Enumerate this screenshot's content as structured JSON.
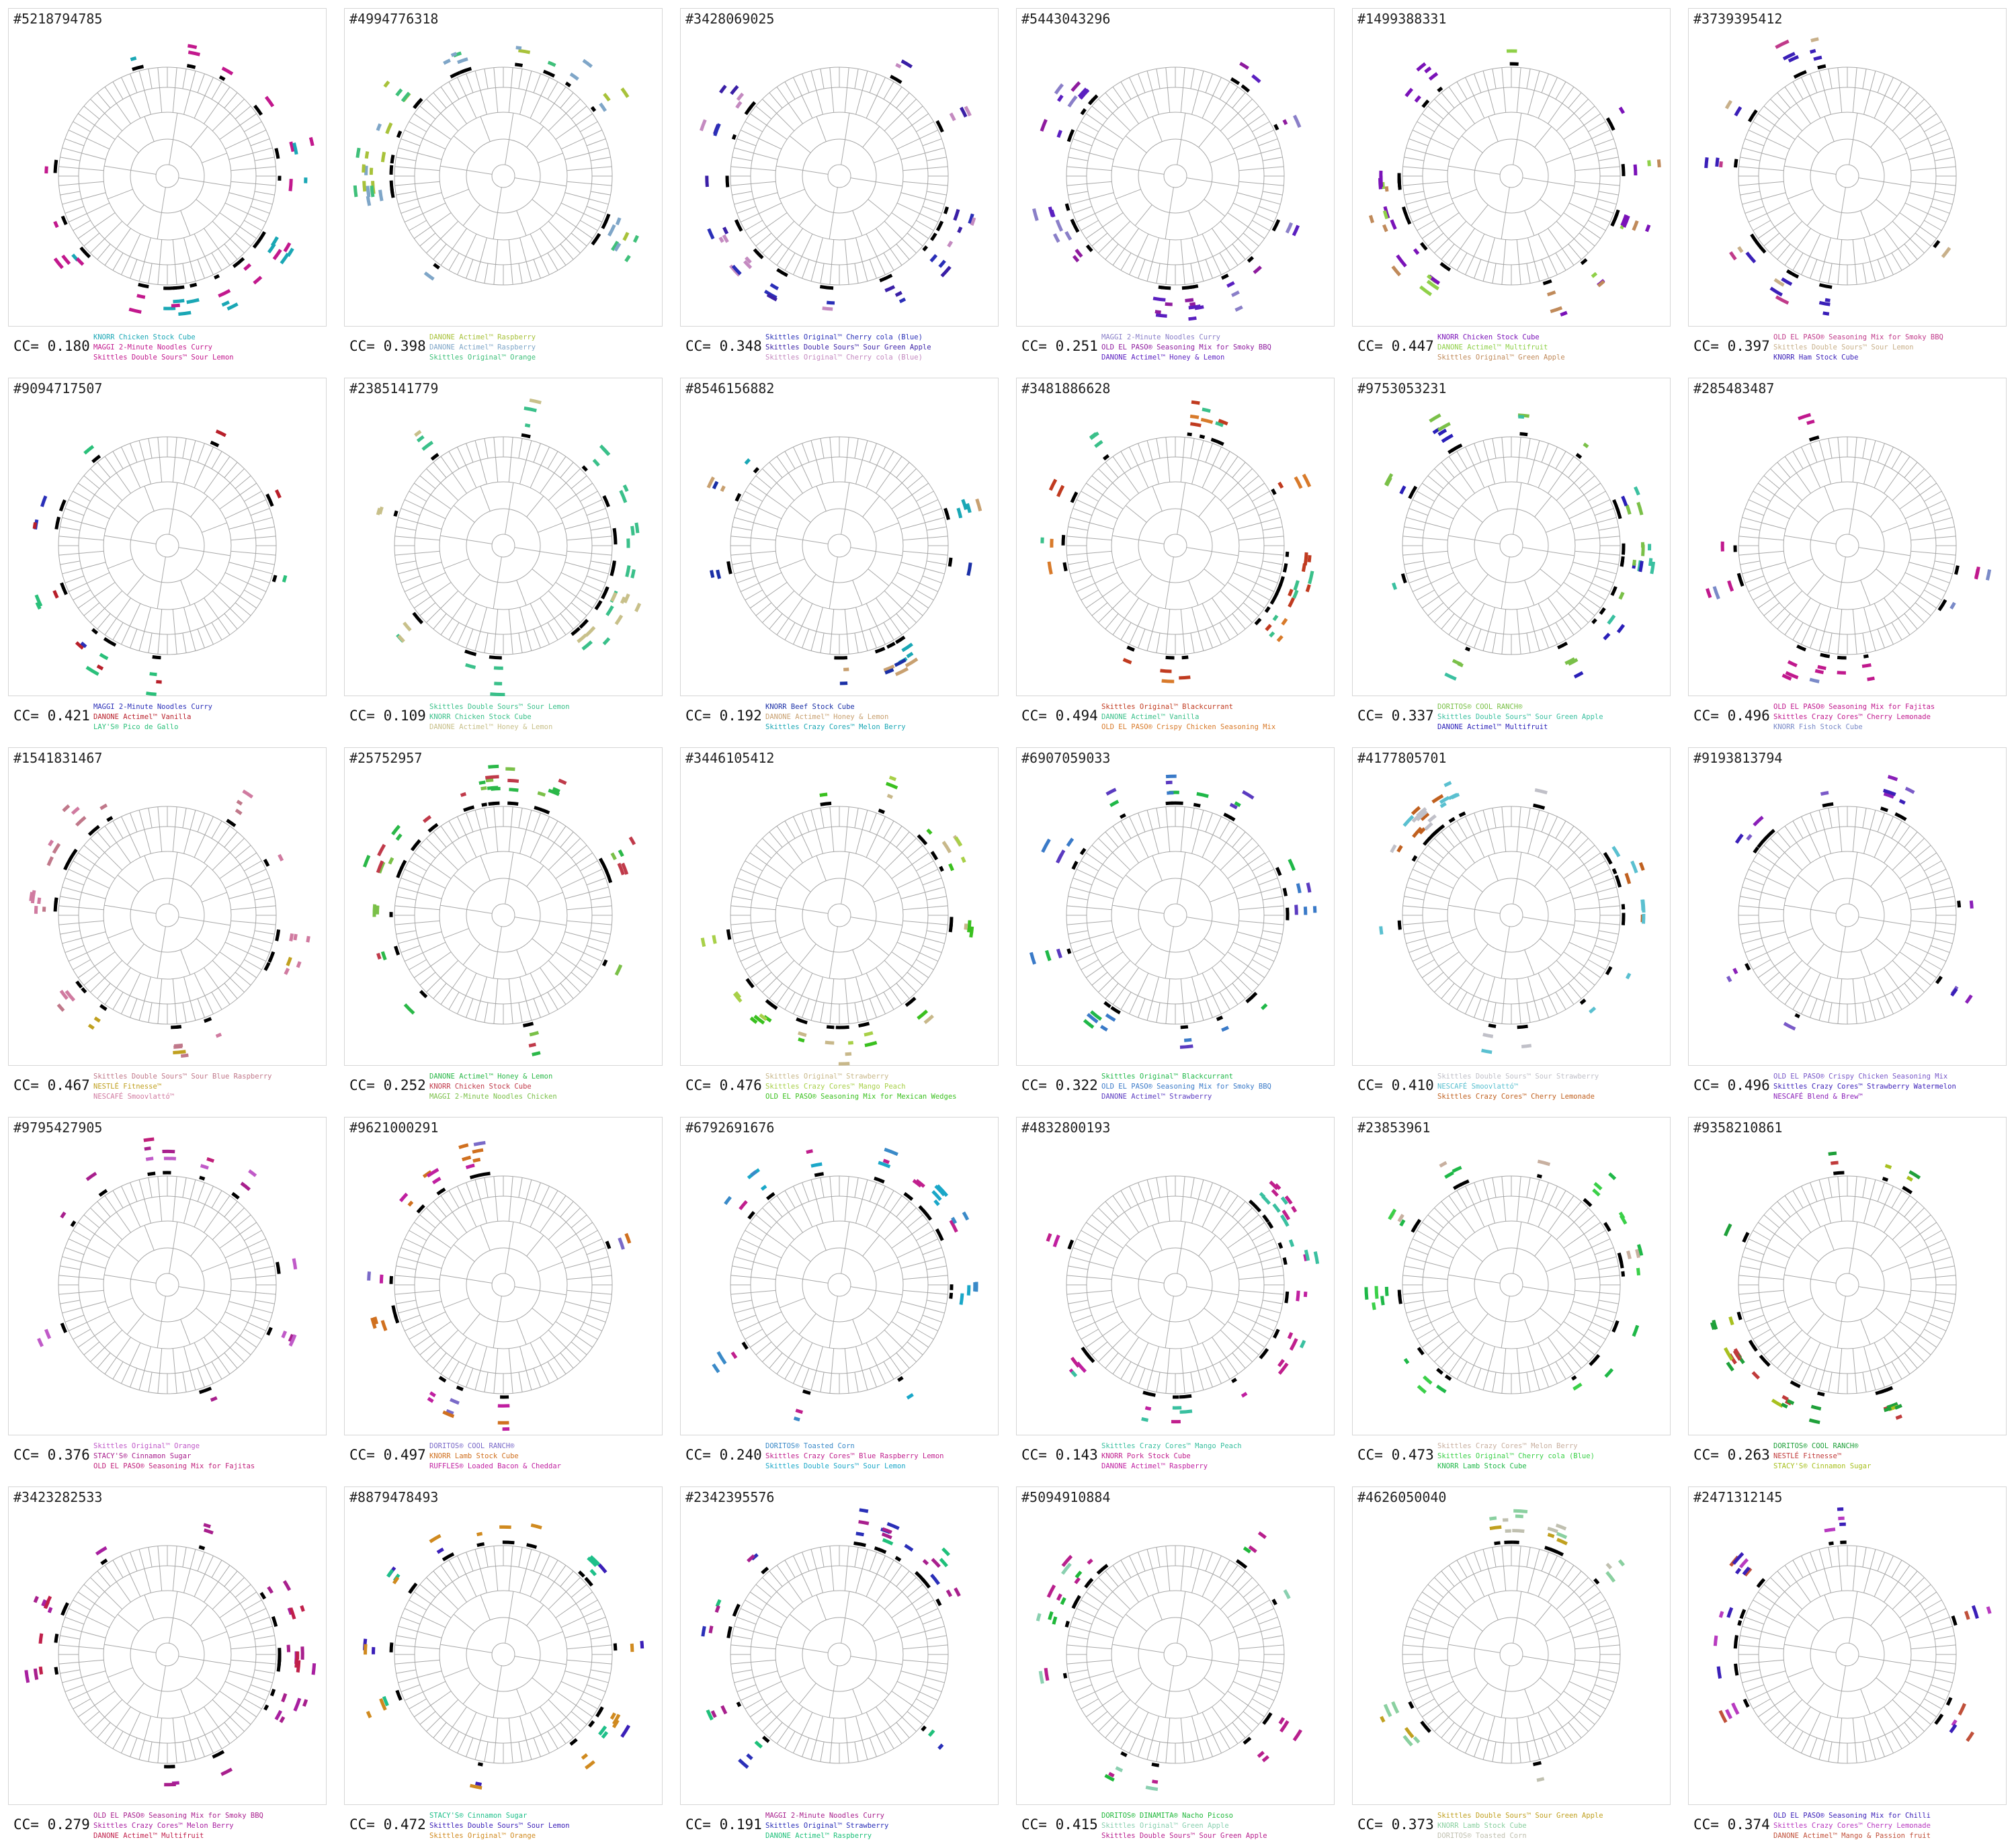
{
  "chart_data": [
    {
      "type": "radial-tree",
      "id": "#5218794785",
      "cc": "CC= 0.180",
      "legend": [
        {
          "name": "KNORR Chicken Stock Cube",
          "color": "#1aa7b5"
        },
        {
          "name": "MAGGI 2-Minute Noodles Curry",
          "color": "#c2188d"
        },
        {
          "name": "Skittles Double Sours™ Sour Lemon",
          "color": "#c2188d"
        }
      ]
    },
    {
      "type": "radial-tree",
      "id": "#4994776318",
      "cc": "CC= 0.398",
      "legend": [
        {
          "name": "DANONE Actimel™ Raspberry",
          "color": "#a8c23a"
        },
        {
          "name": "DANONE Actimel™ Raspberry",
          "color": "#7fa6c8"
        },
        {
          "name": "Skittles Original™ Orange",
          "color": "#3fc07a"
        }
      ]
    },
    {
      "type": "radial-tree",
      "id": "#3428069025",
      "cc": "CC= 0.348",
      "legend": [
        {
          "name": "Skittles Original™ Cherry cola (Blue)",
          "color": "#2a2fb8"
        },
        {
          "name": "Skittles Double Sours™ Sour Green Apple",
          "color": "#3a1fa6"
        },
        {
          "name": "Skittles Original™ Cherry cola (Blue)",
          "color": "#c48ac0"
        }
      ]
    },
    {
      "type": "radial-tree",
      "id": "#5443043296",
      "cc": "CC= 0.251",
      "legend": [
        {
          "name": "MAGGI 2-Minute Noodles Curry",
          "color": "#8a7fc8"
        },
        {
          "name": "OLD EL PASO® Seasoning Mix for Smoky BBQ",
          "color": "#8e1b9e"
        },
        {
          "name": "DANONE Actimel™ Honey & Lemon",
          "color": "#5a1fc0"
        }
      ]
    },
    {
      "type": "radial-tree",
      "id": "#1499388331",
      "cc": "CC= 0.447",
      "legend": [
        {
          "name": "KNORR Chicken Stock Cube",
          "color": "#7a12b8"
        },
        {
          "name": "DANONE Actimel™ Multifruit",
          "color": "#8fd048"
        },
        {
          "name": "Skittles Original™ Green Apple",
          "color": "#c08a5a"
        }
      ]
    },
    {
      "type": "radial-tree",
      "id": "#3739395412",
      "cc": "CC= 0.397",
      "legend": [
        {
          "name": "OLD EL PASO® Seasoning Mix for Smoky BBQ",
          "color": "#c03a8a"
        },
        {
          "name": "Skittles Double Sours™ Sour Lemon",
          "color": "#c8b08a"
        },
        {
          "name": "KNORR Ham Stock Cube",
          "color": "#3a1fb8"
        }
      ]
    },
    {
      "type": "radial-tree",
      "id": "#9094717507",
      "cc": "CC= 0.421",
      "legend": [
        {
          "name": "MAGGI 2-Minute Noodles Curry",
          "color": "#2a2fb8"
        },
        {
          "name": "DANONE Actimel™ Vanilla",
          "color": "#b81f2a"
        },
        {
          "name": "LAY'S® Pico de Gallo",
          "color": "#2ac07a"
        }
      ]
    },
    {
      "type": "radial-tree",
      "id": "#2385141779",
      "cc": "CC= 0.109",
      "legend": [
        {
          "name": "Skittles Double Sours™ Sour Lemon",
          "color": "#3ac08a"
        },
        {
          "name": "KNORR Chicken Stock Cube",
          "color": "#3ac08a"
        },
        {
          "name": "DANONE Actimel™ Honey & Lemon",
          "color": "#c8c08a"
        }
      ]
    },
    {
      "type": "radial-tree",
      "id": "#8546156882",
      "cc": "CC= 0.192",
      "legend": [
        {
          "name": "KNORR Beef Stock Cube",
          "color": "#1a2fa6"
        },
        {
          "name": "DANONE Actimel™ Honey & Lemon",
          "color": "#c8a070"
        },
        {
          "name": "Skittles Crazy Cores™ Melon Berry",
          "color": "#1aa7b5"
        }
      ]
    },
    {
      "type": "radial-tree",
      "id": "#3481886628",
      "cc": "CC= 0.494",
      "legend": [
        {
          "name": "Skittles Original™ Blackcurrant",
          "color": "#c03a1f"
        },
        {
          "name": "DANONE Actimel™ Vanilla",
          "color": "#3ac08a"
        },
        {
          "name": "OLD EL PASO® Crispy Chicken Seasoning Mix",
          "color": "#d87a2a"
        }
      ]
    },
    {
      "type": "radial-tree",
      "id": "#9753053231",
      "cc": "CC= 0.337",
      "legend": [
        {
          "name": "DORITOS® COOL RANCH®",
          "color": "#7ac048"
        },
        {
          "name": "Skittles Double Sours™ Sour Green Apple",
          "color": "#3ac0a0"
        },
        {
          "name": "DANONE Actimel™ Multifruit",
          "color": "#2a1fb8"
        }
      ]
    },
    {
      "type": "radial-tree",
      "id": "#285483487",
      "cc": "CC= 0.496",
      "legend": [
        {
          "name": "OLD EL PASO® Seasoning Mix for Fajitas",
          "color": "#c0188d"
        },
        {
          "name": "Skittles Crazy Cores™ Cherry Lemonade",
          "color": "#c0188d"
        },
        {
          "name": "KNORR Fish Stock Cube",
          "color": "#7a8ac8"
        }
      ]
    },
    {
      "type": "radial-tree",
      "id": "#1541831467",
      "cc": "CC= 0.467",
      "legend": [
        {
          "name": "Skittles Double Sours™ Sour Blue Raspberry",
          "color": "#c0788a"
        },
        {
          "name": "NESTLÉ Fitnesse™",
          "color": "#c0a01f"
        },
        {
          "name": "NESCAFÉ Smoovlattó™",
          "color": "#d07aa0"
        }
      ]
    },
    {
      "type": "radial-tree",
      "id": "#25752957",
      "cc": "CC= 0.252",
      "legend": [
        {
          "name": "DANONE Actimel™ Honey & Lemon",
          "color": "#2ab848"
        },
        {
          "name": "KNORR Chicken Stock Cube",
          "color": "#c03a4a"
        },
        {
          "name": "MAGGI 2-Minute Noodles Chicken",
          "color": "#7ac048"
        }
      ]
    },
    {
      "type": "radial-tree",
      "id": "#3446105412",
      "cc": "CC= 0.476",
      "legend": [
        {
          "name": "Skittles Original™ Strawberry",
          "color": "#c8b88a"
        },
        {
          "name": "Skittles Crazy Cores™ Mango Peach",
          "color": "#a8d048"
        },
        {
          "name": "OLD EL PASO® Seasoning Mix for Mexican Wedges",
          "color": "#3ac01f"
        }
      ]
    },
    {
      "type": "radial-tree",
      "id": "#6907059033",
      "cc": "CC= 0.322",
      "legend": [
        {
          "name": "Skittles Original™ Blackcurrant",
          "color": "#1fb848"
        },
        {
          "name": "OLD EL PASO® Seasoning Mix for Smoky BBQ",
          "color": "#3a7ac8"
        },
        {
          "name": "DANONE Actimel™ Strawberry",
          "color": "#5a3ac0"
        }
      ]
    },
    {
      "type": "radial-tree",
      "id": "#4177805701",
      "cc": "CC= 0.410",
      "legend": [
        {
          "name": "Skittles Double Sours™ Sour Strawberry",
          "color": "#c0c0c8"
        },
        {
          "name": "NESCAFÉ Smoovlattó™",
          "color": "#5ac0d0"
        },
        {
          "name": "Skittles Crazy Cores™ Cherry Lemonade",
          "color": "#c0601f"
        }
      ]
    },
    {
      "type": "radial-tree",
      "id": "#9193813794",
      "cc": "CC= 0.496",
      "legend": [
        {
          "name": "OLD EL PASO® Crispy Chicken Seasoning Mix",
          "color": "#7a5ac8"
        },
        {
          "name": "Skittles Crazy Cores™ Strawberry Watermelon",
          "color": "#3a1fb8"
        },
        {
          "name": "NESCAFÉ Blend & Brew™",
          "color": "#8a1fb8"
        }
      ]
    },
    {
      "type": "radial-tree",
      "id": "#9795427905",
      "cc": "CC= 0.376",
      "legend": [
        {
          "name": "Skittles Original™ Orange",
          "color": "#c05ac8"
        },
        {
          "name": "STACY'S® Cinnamon Sugar",
          "color": "#a81f8d"
        },
        {
          "name": "OLD EL PASO® Seasoning Mix for Fajitas",
          "color": "#c01f7a"
        }
      ]
    },
    {
      "type": "radial-tree",
      "id": "#9621000291",
      "cc": "CC= 0.497",
      "legend": [
        {
          "name": "DORITOS® COOL RANCH®",
          "color": "#7a6ac8"
        },
        {
          "name": "KNORR Lamb Stock Cube",
          "color": "#d0701f"
        },
        {
          "name": "RUFFLES® Loaded Bacon & Cheddar",
          "color": "#c01fa0"
        }
      ]
    },
    {
      "type": "radial-tree",
      "id": "#6792691676",
      "cc": "CC= 0.240",
      "legend": [
        {
          "name": "DORITOS® Toasted Corn",
          "color": "#3a8ac8"
        },
        {
          "name": "Skittles Crazy Cores™ Blue Raspberry Lemon",
          "color": "#c01f8d"
        },
        {
          "name": "Skittles Double Sours™ Sour Lemon",
          "color": "#1aa7c8"
        }
      ]
    },
    {
      "type": "radial-tree",
      "id": "#4832800193",
      "cc": "CC= 0.143",
      "legend": [
        {
          "name": "Skittles Crazy Cores™ Mango Peach",
          "color": "#3ac0a0"
        },
        {
          "name": "KNORR Pork Stock Cube",
          "color": "#c01f8d"
        },
        {
          "name": "DANONE Actimel™ Raspberry",
          "color": "#c01fa0"
        }
      ]
    },
    {
      "type": "radial-tree",
      "id": "#23853961",
      "cc": "CC= 0.473",
      "legend": [
        {
          "name": "Skittles Crazy Cores™ Melon Berry",
          "color": "#c8b0a0"
        },
        {
          "name": "Skittles Original™ Cherry cola (Blue)",
          "color": "#3ad048"
        },
        {
          "name": "KNORR Lamb Stock Cube",
          "color": "#1fb848"
        }
      ]
    },
    {
      "type": "radial-tree",
      "id": "#9358210861",
      "cc": "CC= 0.263",
      "legend": [
        {
          "name": "DORITOS® COOL RANCH®",
          "color": "#1fa03a"
        },
        {
          "name": "NESTLÉ Fitnesse™",
          "color": "#c03a3a"
        },
        {
          "name": "STACY'S® Cinnamon Sugar",
          "color": "#a8c01f"
        }
      ]
    },
    {
      "type": "radial-tree",
      "id": "#3423282533",
      "cc": "CC= 0.279",
      "legend": [
        {
          "name": "OLD EL PASO® Seasoning Mix for Smoky BBQ",
          "color": "#a81f8d"
        },
        {
          "name": "Skittles Crazy Cores™ Melon Berry",
          "color": "#a81fa0"
        },
        {
          "name": "DANONE Actimel™ Multifruit",
          "color": "#c01f4a"
        }
      ]
    },
    {
      "type": "radial-tree",
      "id": "#8879478493",
      "cc": "CC= 0.472",
      "legend": [
        {
          "name": "STACY'S® Cinnamon Sugar",
          "color": "#1fc08a"
        },
        {
          "name": "Skittles Double Sours™ Sour Lemon",
          "color": "#3a1fb8"
        },
        {
          "name": "Skittles Original™ Orange",
          "color": "#d08a1f"
        }
      ]
    },
    {
      "type": "radial-tree",
      "id": "#2342395576",
      "cc": "CC= 0.191",
      "legend": [
        {
          "name": "MAGGI 2-Minute Noodles Curry",
          "color": "#a81f8d"
        },
        {
          "name": "Skittles Original™ Strawberry",
          "color": "#2a2fb8"
        },
        {
          "name": "DANONE Actimel™ Raspberry",
          "color": "#1fc07a"
        }
      ]
    },
    {
      "type": "radial-tree",
      "id": "#5094910884",
      "cc": "CC= 0.415",
      "legend": [
        {
          "name": "DORITOS® DINAMITA® Nacho Picoso",
          "color": "#1fb83a"
        },
        {
          "name": "Skittles Original™ Green Apple",
          "color": "#8ad0b0"
        },
        {
          "name": "Skittles Double Sours™ Sour Green Apple",
          "color": "#b81f8d"
        }
      ]
    },
    {
      "type": "radial-tree",
      "id": "#4626050040",
      "cc": "CC= 0.373",
      "legend": [
        {
          "name": "Skittles Double Sours™ Sour Green Apple",
          "color": "#c0a01f"
        },
        {
          "name": "KNORR Lamb Stock Cube",
          "color": "#8ad0a0"
        },
        {
          "name": "DORITOS® Toasted Corn",
          "color": "#c0c0b0"
        }
      ]
    },
    {
      "type": "radial-tree",
      "id": "#2471312145",
      "cc": "CC= 0.374",
      "legend": [
        {
          "name": "OLD EL PASO® Seasoning Mix for Chilli",
          "color": "#3a1fb8"
        },
        {
          "name": "Skittles Crazy Cores™ Cherry Lemonade",
          "color": "#b83ac0"
        },
        {
          "name": "DANONE Actimel™ Mango & Passion fruit",
          "color": "#c0503a"
        }
      ]
    }
  ]
}
